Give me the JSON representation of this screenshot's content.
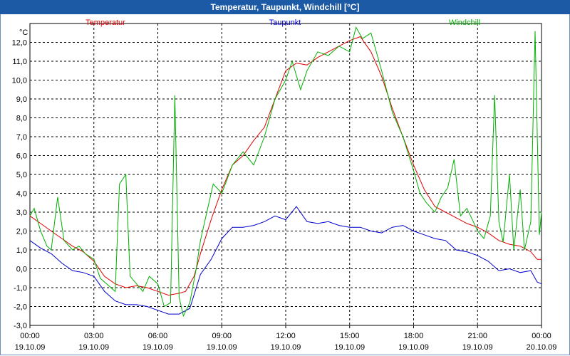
{
  "window": {
    "title": "Temperatur, Taupunkt, Windchill [°C]"
  },
  "colors": {
    "titlebar": "#1c5aa6",
    "temperatur": "#e00000",
    "taupunkt": "#0000cc",
    "windchill": "#00b000",
    "grid": "#000000"
  },
  "chart_data": {
    "type": "line",
    "title": "Temperatur, Taupunkt, Windchill [°C]",
    "unit_label": "°C",
    "x_unit": "hours since 19.10.09 00:00",
    "xlim": [
      0,
      24
    ],
    "ylim": [
      -3,
      13
    ],
    "grid": true,
    "legend_position": "top",
    "y_ticks": [
      -3,
      -2,
      -1,
      0,
      1,
      2,
      3,
      4,
      5,
      6,
      7,
      8,
      9,
      10,
      11,
      12
    ],
    "y_tick_labels": [
      "-3,0",
      "-2,0",
      "-1,0",
      "0,0",
      "1,0",
      "2,0",
      "3,0",
      "4,0",
      "5,0",
      "6,0",
      "7,0",
      "8,0",
      "9,0",
      "10,0",
      "11,0",
      "12,0"
    ],
    "x_ticks": [
      {
        "x": 0,
        "time": "00:00",
        "date": "19.10.09"
      },
      {
        "x": 3,
        "time": "03:00",
        "date": "19.10.09"
      },
      {
        "x": 6,
        "time": "06:00",
        "date": "19.10.09"
      },
      {
        "x": 9,
        "time": "09:00",
        "date": "19.10.09"
      },
      {
        "x": 12,
        "time": "12:00",
        "date": "19.10.09"
      },
      {
        "x": 15,
        "time": "15:00",
        "date": "19.10.09"
      },
      {
        "x": 18,
        "time": "18:00",
        "date": "19.10.09"
      },
      {
        "x": 21,
        "time": "21:00",
        "date": "19.10.09"
      },
      {
        "x": 24,
        "time": "00:00",
        "date": "20.10.09"
      }
    ],
    "series": [
      {
        "name": "Temperatur",
        "key": "temperatur",
        "color": "#e00000",
        "points": [
          [
            0,
            2.8
          ],
          [
            0.5,
            2.4
          ],
          [
            1,
            2.0
          ],
          [
            1.5,
            1.6
          ],
          [
            2,
            1.2
          ],
          [
            2.5,
            0.9
          ],
          [
            3,
            0.4
          ],
          [
            3.5,
            -0.4
          ],
          [
            4,
            -0.8
          ],
          [
            4.5,
            -1.0
          ],
          [
            5,
            -0.9
          ],
          [
            5.5,
            -1.0
          ],
          [
            6,
            -1.2
          ],
          [
            6.5,
            -1.4
          ],
          [
            7,
            -1.3
          ],
          [
            7.3,
            -1.2
          ],
          [
            7.7,
            -0.4
          ],
          [
            8,
            0.8
          ],
          [
            8.5,
            2.6
          ],
          [
            9,
            4.2
          ],
          [
            9.5,
            5.5
          ],
          [
            10,
            6.0
          ],
          [
            10.5,
            6.8
          ],
          [
            11,
            7.5
          ],
          [
            11.5,
            9.0
          ],
          [
            12,
            10.5
          ],
          [
            12.5,
            10.9
          ],
          [
            13,
            10.8
          ],
          [
            13.5,
            11.2
          ],
          [
            14,
            11.5
          ],
          [
            14.5,
            11.8
          ],
          [
            15,
            12.1
          ],
          [
            15.5,
            12.3
          ],
          [
            16,
            11.5
          ],
          [
            16.5,
            10.2
          ],
          [
            17,
            8.5
          ],
          [
            17.5,
            7.0
          ],
          [
            18,
            5.5
          ],
          [
            18.5,
            4.2
          ],
          [
            19,
            3.3
          ],
          [
            19.5,
            3.0
          ],
          [
            20,
            2.7
          ],
          [
            20.5,
            2.4
          ],
          [
            21,
            2.2
          ],
          [
            21.5,
            1.9
          ],
          [
            22,
            1.5
          ],
          [
            22.5,
            1.3
          ],
          [
            23,
            1.2
          ],
          [
            23.5,
            0.9
          ],
          [
            23.8,
            0.5
          ],
          [
            24,
            0.5
          ]
        ]
      },
      {
        "name": "Taupunkt",
        "key": "taupunkt",
        "color": "#0000cc",
        "points": [
          [
            0,
            1.5
          ],
          [
            0.5,
            1.1
          ],
          [
            1,
            0.8
          ],
          [
            1.5,
            0.3
          ],
          [
            2,
            -0.1
          ],
          [
            2.5,
            -0.2
          ],
          [
            3,
            -0.4
          ],
          [
            3.5,
            -1.2
          ],
          [
            4,
            -1.7
          ],
          [
            4.5,
            -1.9
          ],
          [
            5,
            -1.9
          ],
          [
            5.5,
            -2.0
          ],
          [
            6,
            -2.2
          ],
          [
            6.5,
            -2.4
          ],
          [
            7,
            -2.4
          ],
          [
            7.5,
            -2.1
          ],
          [
            8,
            -0.3
          ],
          [
            8.5,
            0.5
          ],
          [
            9,
            1.6
          ],
          [
            9.5,
            2.2
          ],
          [
            10,
            2.2
          ],
          [
            10.5,
            2.3
          ],
          [
            11,
            2.5
          ],
          [
            11.5,
            2.8
          ],
          [
            12,
            2.6
          ],
          [
            12.5,
            3.3
          ],
          [
            13,
            2.5
          ],
          [
            13.5,
            2.4
          ],
          [
            14,
            2.5
          ],
          [
            14.5,
            2.3
          ],
          [
            15,
            2.2
          ],
          [
            15.5,
            2.2
          ],
          [
            16,
            2.0
          ],
          [
            16.5,
            1.9
          ],
          [
            17,
            2.2
          ],
          [
            17.5,
            2.3
          ],
          [
            18,
            2.0
          ],
          [
            18.5,
            1.8
          ],
          [
            19,
            1.6
          ],
          [
            19.5,
            1.5
          ],
          [
            20,
            1.0
          ],
          [
            20.5,
            0.9
          ],
          [
            21,
            0.7
          ],
          [
            21.5,
            0.4
          ],
          [
            22,
            -0.1
          ],
          [
            22.5,
            0.0
          ],
          [
            23,
            -0.2
          ],
          [
            23.5,
            -0.1
          ],
          [
            23.8,
            -0.7
          ],
          [
            24,
            -0.8
          ]
        ]
      },
      {
        "name": "Windchill",
        "key": "windchill",
        "color": "#00b000",
        "points": [
          [
            0,
            2.8
          ],
          [
            0.2,
            3.2
          ],
          [
            0.5,
            2.0
          ],
          [
            0.8,
            1.2
          ],
          [
            1,
            1.0
          ],
          [
            1.3,
            3.8
          ],
          [
            1.6,
            1.5
          ],
          [
            2,
            1.0
          ],
          [
            2.3,
            1.2
          ],
          [
            2.6,
            0.8
          ],
          [
            3,
            0.5
          ],
          [
            3.3,
            -0.5
          ],
          [
            3.6,
            -0.8
          ],
          [
            4,
            -1.2
          ],
          [
            4.2,
            4.5
          ],
          [
            4.5,
            5.0
          ],
          [
            4.7,
            -0.4
          ],
          [
            5,
            -0.8
          ],
          [
            5.3,
            -1.2
          ],
          [
            5.6,
            -0.4
          ],
          [
            6,
            -0.8
          ],
          [
            6.3,
            -2.0
          ],
          [
            6.6,
            -1.8
          ],
          [
            6.8,
            9.2
          ],
          [
            7,
            -1.5
          ],
          [
            7.2,
            -2.5
          ],
          [
            7.5,
            -1.8
          ],
          [
            7.8,
            0.0
          ],
          [
            8,
            1.5
          ],
          [
            8.3,
            3.0
          ],
          [
            8.6,
            4.5
          ],
          [
            9,
            4.0
          ],
          [
            9.5,
            5.5
          ],
          [
            10,
            6.2
          ],
          [
            10.5,
            5.5
          ],
          [
            11,
            7.0
          ],
          [
            11.5,
            9.0
          ],
          [
            12,
            10.0
          ],
          [
            12.3,
            11.0
          ],
          [
            12.7,
            9.5
          ],
          [
            13,
            10.5
          ],
          [
            13.5,
            11.5
          ],
          [
            14,
            11.3
          ],
          [
            14.5,
            11.8
          ],
          [
            15,
            11.5
          ],
          [
            15.3,
            12.8
          ],
          [
            15.6,
            12.2
          ],
          [
            16,
            12.5
          ],
          [
            16.5,
            10.5
          ],
          [
            17,
            8.3
          ],
          [
            17.5,
            7.0
          ],
          [
            18,
            5.2
          ],
          [
            18.3,
            4.0
          ],
          [
            18.6,
            3.5
          ],
          [
            19,
            3.0
          ],
          [
            19.3,
            3.8
          ],
          [
            19.6,
            4.3
          ],
          [
            19.9,
            5.8
          ],
          [
            20.2,
            2.8
          ],
          [
            20.5,
            3.2
          ],
          [
            20.8,
            2.5
          ],
          [
            21,
            2.0
          ],
          [
            21.3,
            1.6
          ],
          [
            21.6,
            2.8
          ],
          [
            21.8,
            9.2
          ],
          [
            22,
            2.5
          ],
          [
            22.2,
            1.4
          ],
          [
            22.5,
            5.0
          ],
          [
            22.7,
            1.0
          ],
          [
            23,
            4.2
          ],
          [
            23.2,
            1.0
          ],
          [
            23.5,
            2.5
          ],
          [
            23.7,
            12.6
          ],
          [
            23.9,
            1.8
          ],
          [
            24,
            3.0
          ]
        ]
      }
    ]
  }
}
